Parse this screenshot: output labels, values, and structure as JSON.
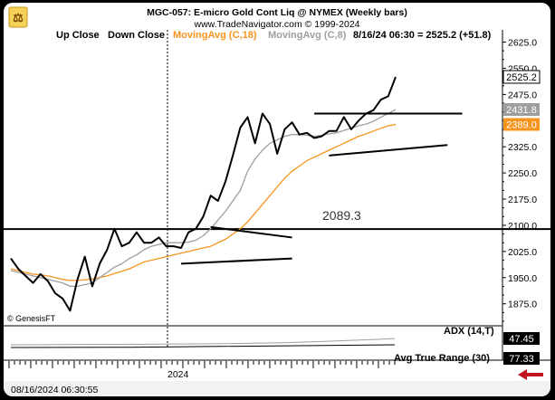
{
  "chart_data": {
    "type": "line",
    "title": "MGC-057:  E-micro Gold Cont Liq @ NYMEX  (Weekly bars)",
    "subtitle": "www.TradeNavigator.com © 1999-2024",
    "legend": {
      "up_close": "Up Close",
      "down_close": "Down Close",
      "ma18": "MovingAvg (C,18)",
      "ma8": "MovingAvg (C,8)",
      "last_bar": "8/16/24 06:30 = 2525.2 (+51.8)"
    },
    "y_ticks": [
      "2625.0",
      "2550.0",
      "2475.0",
      "2400.0",
      "2325.0",
      "2250.0",
      "2175.0",
      "2100.0",
      "2025.0",
      "1950.0",
      "1875.0"
    ],
    "y_tick_values": [
      2625,
      2550,
      2475,
      2400,
      2325,
      2250,
      2175,
      2100,
      2025,
      1950,
      1875
    ],
    "ylim": [
      1812,
      2660
    ],
    "x_label_2024": "2024",
    "price_tags": [
      {
        "label": "2525.2",
        "value": 2525.2,
        "bg": "#ffffff"
      },
      {
        "label": "2431.8",
        "value": 2431.8,
        "bg": "#9e9e9e"
      },
      {
        "label": "2389.0",
        "value": 2389.0,
        "bg": "#f7941d"
      }
    ],
    "horizontal_line": {
      "label": "2089.3",
      "value": 2089.3
    },
    "series": [
      {
        "name": "Close",
        "color": "#000000",
        "values": [
          2005,
          1975,
          1955,
          1935,
          1960,
          1940,
          1905,
          1890,
          1855,
          1945,
          2010,
          1925,
          1990,
          2030,
          2090,
          2040,
          2050,
          2080,
          2050,
          2050,
          2065,
          2040,
          2040,
          2035,
          2080,
          2090,
          2125,
          2185,
          2170,
          2225,
          2300,
          2380,
          2410,
          2335,
          2420,
          2390,
          2305,
          2375,
          2395,
          2360,
          2365,
          2350,
          2355,
          2370,
          2370,
          2410,
          2375,
          2400,
          2420,
          2430,
          2460,
          2470,
          2525.2
        ]
      },
      {
        "name": "MovingAvg (C,8)",
        "color": "#9e9e9e",
        "values": [
          1970,
          1965,
          1960,
          1955,
          1950,
          1945,
          1940,
          1935,
          1925,
          1925,
          1930,
          1935,
          1950,
          1965,
          1980,
          1990,
          2005,
          2015,
          2030,
          2040,
          2045,
          2050,
          2050,
          2050,
          2052,
          2057,
          2070,
          2090,
          2115,
          2140,
          2170,
          2200,
          2255,
          2290,
          2315,
          2335,
          2345,
          2355,
          2360,
          2360,
          2358,
          2355,
          2358,
          2362,
          2365,
          2372,
          2378,
          2385,
          2390,
          2398,
          2410,
          2420,
          2431.8
        ]
      },
      {
        "name": "MovingAvg (C,18)",
        "color": "#f7941d",
        "values": [
          1975,
          1970,
          1965,
          1960,
          1958,
          1955,
          1950,
          1945,
          1942,
          1942,
          1944,
          1946,
          1950,
          1955,
          1962,
          1968,
          1975,
          1985,
          1995,
          2000,
          2005,
          2010,
          2015,
          2020,
          2025,
          2030,
          2035,
          2040,
          2050,
          2060,
          2075,
          2090,
          2110,
          2135,
          2160,
          2185,
          2210,
          2235,
          2255,
          2270,
          2285,
          2295,
          2305,
          2315,
          2325,
          2335,
          2345,
          2355,
          2362,
          2370,
          2378,
          2385,
          2389.0
        ]
      }
    ],
    "trendlines": [
      {
        "from": [
          27,
          2095
        ],
        "to": [
          38,
          2065
        ]
      },
      {
        "from": [
          23,
          1990
        ],
        "to": [
          38,
          2005
        ]
      },
      {
        "from": [
          41,
          2420
        ],
        "to": [
          61,
          2420
        ]
      },
      {
        "from": [
          43,
          2300
        ],
        "to": [
          59,
          2330
        ]
      }
    ],
    "annotation": "2089.3",
    "watermark": "© GenesisFT",
    "indicators": [
      {
        "label": "ADX (14,T)",
        "value_label": "47.45"
      },
      {
        "label": "Avg True Range (30)",
        "value_label": "77.33"
      }
    ],
    "status_time": "08/16/2024 06:30:55"
  }
}
